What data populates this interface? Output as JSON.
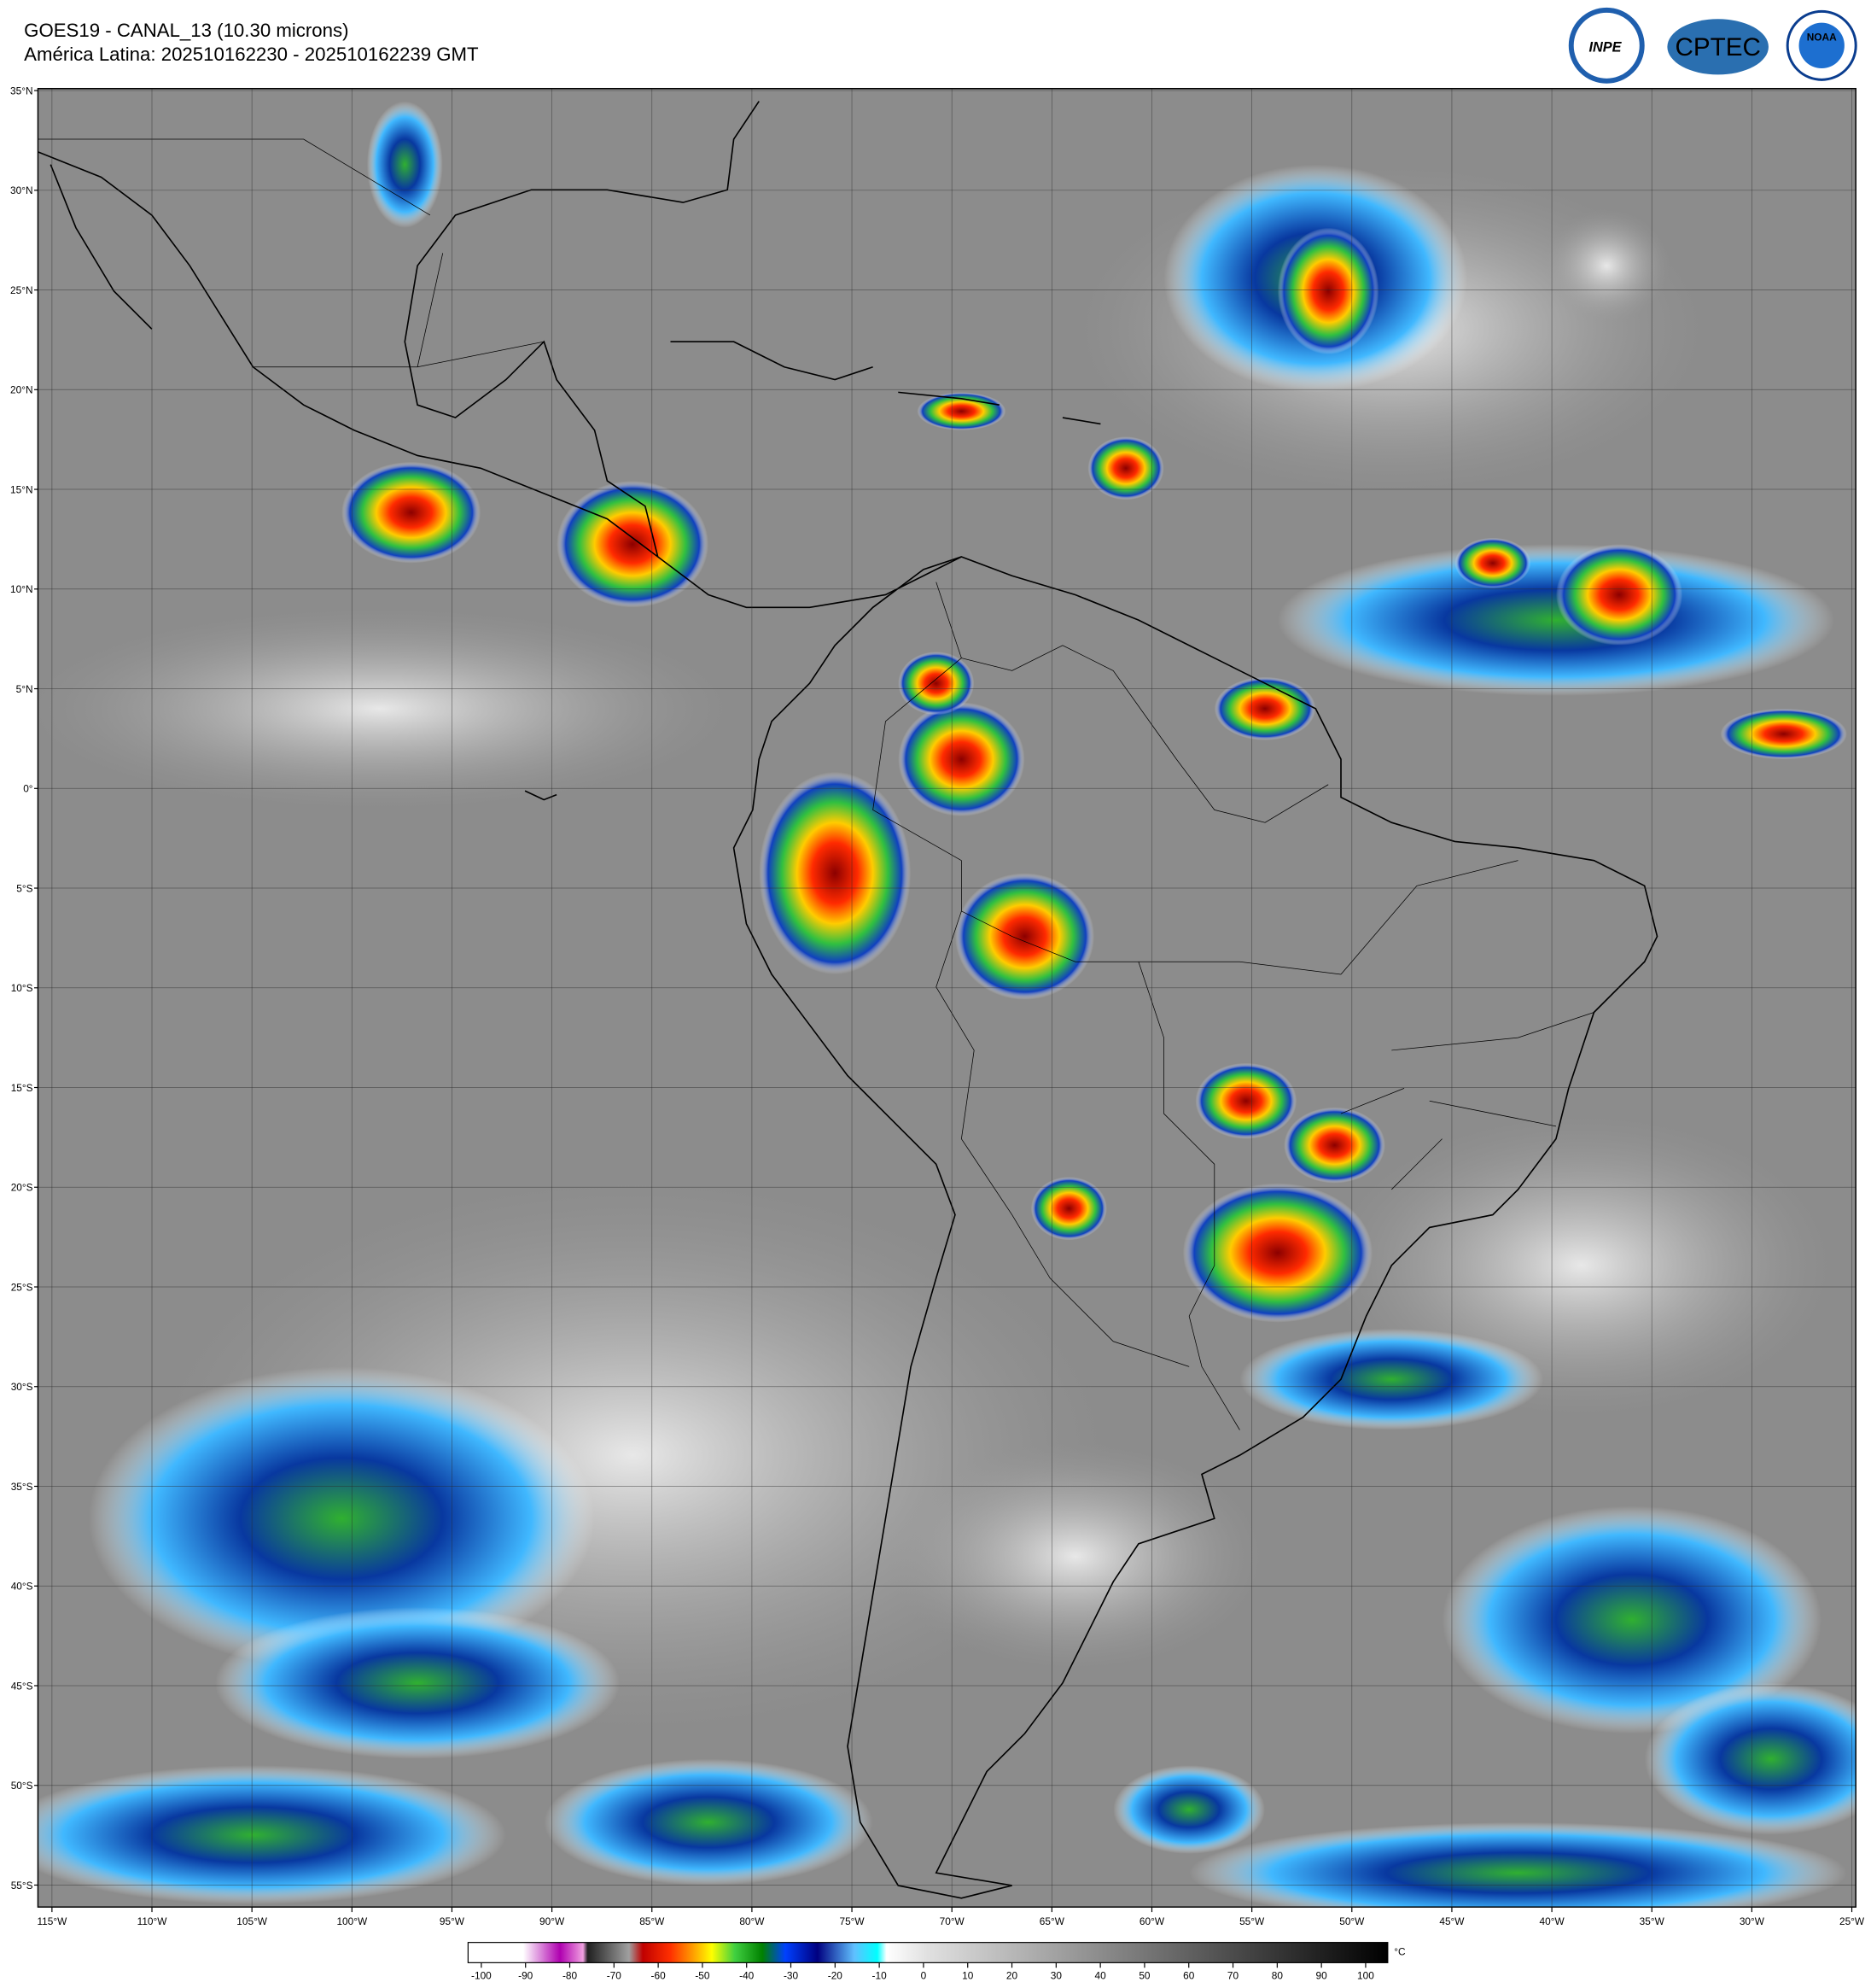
{
  "header": {
    "title": "GOES19 - CANAL_13 (10.30 microns)",
    "subtitle": "América Latina: 202510162230 - 202510162239 GMT"
  },
  "logos": [
    "INPE",
    "CPTEC",
    "NOAA"
  ],
  "map": {
    "xlim": [
      -115.7,
      -24.8
    ],
    "ylim": [
      -56.1,
      35.1
    ],
    "yticks": [
      {
        "value": 35,
        "label": "35°N"
      },
      {
        "value": 30,
        "label": "30°N"
      },
      {
        "value": 25,
        "label": "25°N"
      },
      {
        "value": 20,
        "label": "20°N"
      },
      {
        "value": 15,
        "label": "15°N"
      },
      {
        "value": 10,
        "label": "10°N"
      },
      {
        "value": 5,
        "label": "5°N"
      },
      {
        "value": 0,
        "label": "0°"
      },
      {
        "value": -5,
        "label": "5°S"
      },
      {
        "value": -10,
        "label": "10°S"
      },
      {
        "value": -15,
        "label": "15°S"
      },
      {
        "value": -20,
        "label": "20°S"
      },
      {
        "value": -25,
        "label": "25°S"
      },
      {
        "value": -30,
        "label": "30°S"
      },
      {
        "value": -35,
        "label": "35°S"
      },
      {
        "value": -40,
        "label": "40°S"
      },
      {
        "value": -45,
        "label": "45°S"
      },
      {
        "value": -50,
        "label": "50°S"
      },
      {
        "value": -55,
        "label": "55°S"
      }
    ],
    "xticks": [
      {
        "value": -115,
        "label": "115°W"
      },
      {
        "value": -110,
        "label": "110°W"
      },
      {
        "value": -105,
        "label": "105°W"
      },
      {
        "value": -100,
        "label": "100°W"
      },
      {
        "value": -95,
        "label": "95°W"
      },
      {
        "value": -90,
        "label": "90°W"
      },
      {
        "value": -85,
        "label": "85°W"
      },
      {
        "value": -80,
        "label": "80°W"
      },
      {
        "value": -75,
        "label": "75°W"
      },
      {
        "value": -70,
        "label": "70°W"
      },
      {
        "value": -65,
        "label": "65°W"
      },
      {
        "value": -60,
        "label": "60°W"
      },
      {
        "value": -55,
        "label": "55°W"
      },
      {
        "value": -50,
        "label": "50°W"
      },
      {
        "value": -45,
        "label": "45°W"
      },
      {
        "value": -40,
        "label": "40°W"
      },
      {
        "value": -35,
        "label": "35°W"
      },
      {
        "value": -30,
        "label": "30°W"
      },
      {
        "value": -25,
        "label": "25°W"
      }
    ]
  },
  "colorbar": {
    "unit": "°C",
    "xlim": [
      -103,
      105
    ],
    "xticks": [
      -100,
      -90,
      -80,
      -70,
      -60,
      -50,
      -40,
      -30,
      -20,
      -10,
      0,
      10,
      20,
      30,
      40,
      50,
      60,
      70,
      80,
      90,
      100
    ]
  }
}
